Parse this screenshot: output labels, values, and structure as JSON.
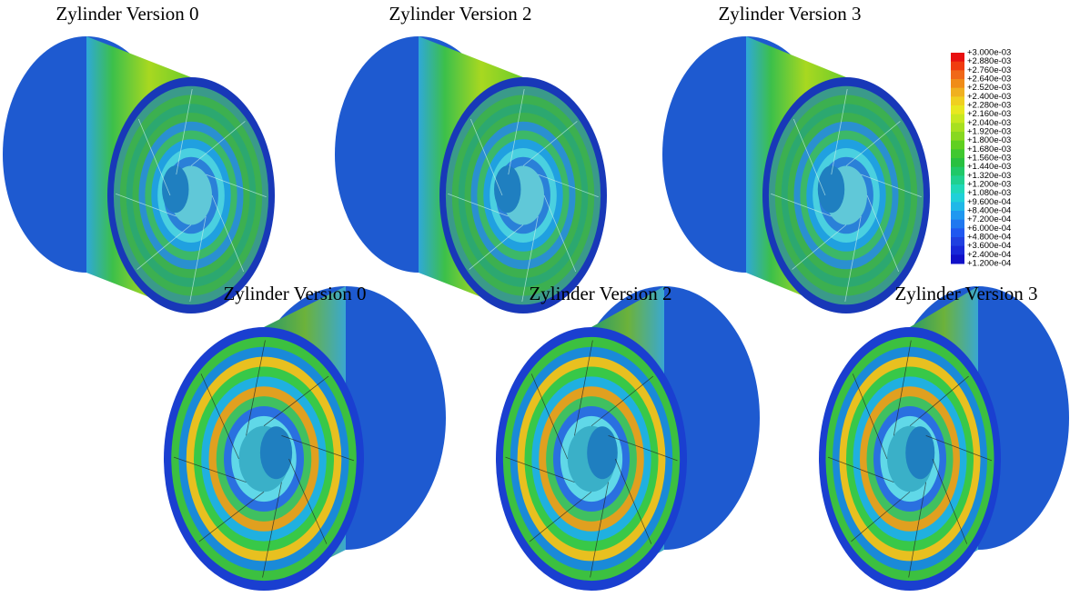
{
  "panels": [
    {
      "title": "Zylinder Version 0"
    },
    {
      "title": "Zylinder Version 2"
    },
    {
      "title": "Zylinder Version 3"
    },
    {
      "title": "Zylinder Version 0"
    },
    {
      "title": "Zylinder Version 2"
    },
    {
      "title": "Zylinder Version 3"
    }
  ],
  "legend": {
    "labels": [
      "+3.000e-03",
      "+2.880e-03",
      "+2.760e-03",
      "+2.640e-03",
      "+2.520e-03",
      "+2.400e-03",
      "+2.280e-03",
      "+2.160e-03",
      "+2.040e-03",
      "+1.920e-03",
      "+1.800e-03",
      "+1.680e-03",
      "+1.560e-03",
      "+1.440e-03",
      "+1.320e-03",
      "+1.200e-03",
      "+1.080e-03",
      "+9.600e-04",
      "+8.400e-04",
      "+7.200e-04",
      "+6.000e-04",
      "+4.800e-04",
      "+3.600e-04",
      "+2.400e-04",
      "+1.200e-04"
    ]
  }
}
